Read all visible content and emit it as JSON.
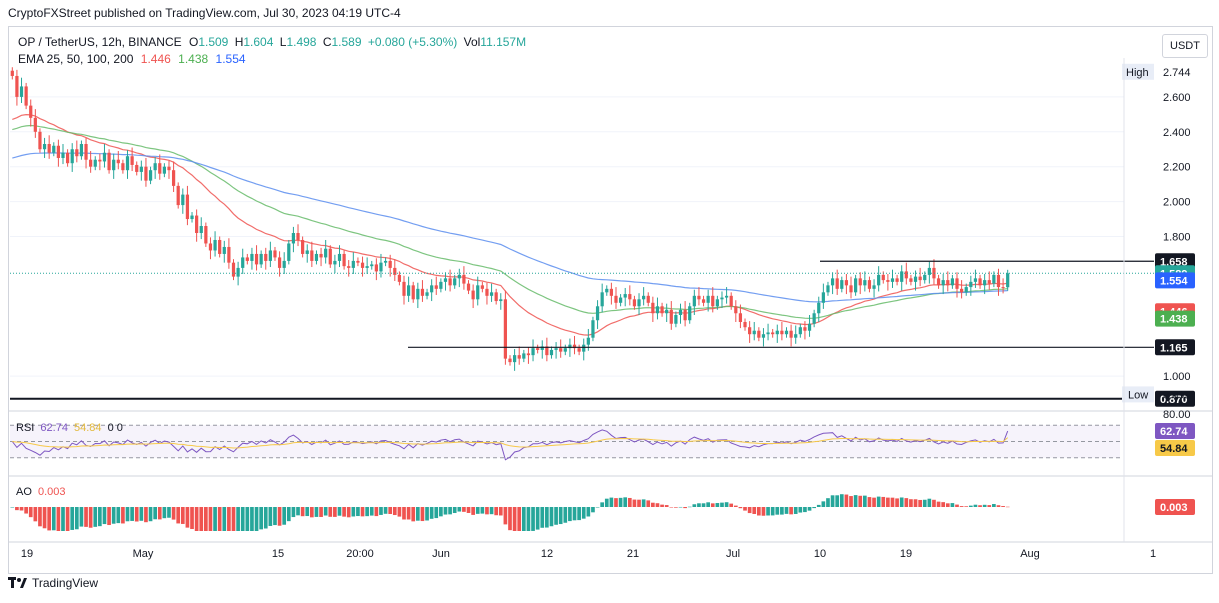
{
  "header": {
    "text": "CryptoFXStreet published on TradingView.com, Jul 30, 2023 04:19 UTC-4"
  },
  "legend": {
    "symbol": "OP / TetherUS, 12h, BINANCE",
    "o_label": "O",
    "o": "1.509",
    "h_label": "H",
    "h": "1.604",
    "l_label": "L",
    "l": "1.498",
    "c_label": "C",
    "c": "1.589",
    "change": "+0.080 (+5.30%)",
    "vol_label": "Vol",
    "vol": "11.157M",
    "ema_label": "EMA 25, 50, 100, 200",
    "ema25": "1.446",
    "ema50": "1.438",
    "ema100": "1.554"
  },
  "currency": "USDT",
  "colors": {
    "up": "#26a69a",
    "down": "#ef5350",
    "ema25": "#ef5350",
    "ema50": "#66bb6a",
    "ema100": "#5b8def",
    "rsi": "#7e57c2",
    "rsi_ma": "#f7c948",
    "hline": "#131722",
    "axis_text": "#131722",
    "grid": "#f0f3fa"
  },
  "chart_data": {
    "type": "candlestick",
    "ylim": [
      0.84,
      2.8
    ],
    "y_ticks": [
      "2.600",
      "2.400",
      "2.200",
      "2.000",
      "1.800",
      "1.000"
    ],
    "x_ticks": [
      "19",
      "May",
      "15",
      "20:00",
      "Jun",
      "12",
      "21",
      "Jul",
      "10",
      "19",
      "Aug",
      "1"
    ],
    "high_label": "High",
    "high": "2.744",
    "low_label": "Low",
    "low": "0.895",
    "horizontal_levels": [
      {
        "value": 1.658,
        "label": "1.658"
      },
      {
        "value": 1.165,
        "label": "1.165"
      },
      {
        "value": 0.87,
        "label": "0.870"
      }
    ],
    "price_tags": [
      {
        "value": 1.589,
        "label": "1.589",
        "color": "#26a69a"
      },
      {
        "value": 1.554,
        "label": "1.554",
        "color": "#2962ff"
      },
      {
        "value": 1.446,
        "label": "1.446",
        "color": "#ef5350"
      },
      {
        "value": 1.438,
        "label": "1.438",
        "color": "#4caf50"
      }
    ],
    "closes": [
      2.72,
      2.6,
      2.66,
      2.55,
      2.48,
      2.4,
      2.3,
      2.33,
      2.28,
      2.32,
      2.25,
      2.28,
      2.22,
      2.3,
      2.26,
      2.33,
      2.24,
      2.2,
      2.24,
      2.23,
      2.28,
      2.18,
      2.24,
      2.22,
      2.18,
      2.26,
      2.21,
      2.17,
      2.2,
      2.12,
      2.18,
      2.22,
      2.16,
      2.2,
      2.18,
      2.09,
      1.98,
      2.04,
      1.9,
      1.92,
      1.82,
      1.86,
      1.76,
      1.72,
      1.78,
      1.7,
      1.74,
      1.65,
      1.57,
      1.62,
      1.68,
      1.66,
      1.7,
      1.64,
      1.7,
      1.66,
      1.72,
      1.68,
      1.62,
      1.66,
      1.76,
      1.82,
      1.78,
      1.7,
      1.72,
      1.66,
      1.7,
      1.68,
      1.73,
      1.64,
      1.66,
      1.7,
      1.63,
      1.62,
      1.66,
      1.65,
      1.62,
      1.63,
      1.64,
      1.6,
      1.65,
      1.66,
      1.62,
      1.58,
      1.54,
      1.46,
      1.52,
      1.44,
      1.5,
      1.46,
      1.48,
      1.52,
      1.5,
      1.54,
      1.56,
      1.52,
      1.56,
      1.58,
      1.53,
      1.49,
      1.44,
      1.52,
      1.5,
      1.46,
      1.48,
      1.43,
      1.44,
      1.1,
      1.08,
      1.12,
      1.1,
      1.13,
      1.12,
      1.16,
      1.15,
      1.17,
      1.12,
      1.15,
      1.16,
      1.14,
      1.16,
      1.18,
      1.16,
      1.14,
      1.18,
      1.22,
      1.32,
      1.4,
      1.48,
      1.5,
      1.46,
      1.42,
      1.45,
      1.47,
      1.44,
      1.4,
      1.44,
      1.46,
      1.42,
      1.36,
      1.4,
      1.36,
      1.38,
      1.3,
      1.35,
      1.38,
      1.32,
      1.4,
      1.46,
      1.44,
      1.42,
      1.46,
      1.4,
      1.44,
      1.45,
      1.46,
      1.4,
      1.36,
      1.31,
      1.28,
      1.24,
      1.26,
      1.22,
      1.24,
      1.25,
      1.24,
      1.26,
      1.24,
      1.26,
      1.22,
      1.24,
      1.28,
      1.26,
      1.3,
      1.36,
      1.42,
      1.48,
      1.52,
      1.56,
      1.5,
      1.55,
      1.52,
      1.48,
      1.56,
      1.52,
      1.55,
      1.5,
      1.52,
      1.58,
      1.55,
      1.54,
      1.56,
      1.54,
      1.6,
      1.56,
      1.54,
      1.57,
      1.55,
      1.58,
      1.62,
      1.56,
      1.52,
      1.55,
      1.52,
      1.56,
      1.5,
      1.48,
      1.51,
      1.54,
      1.56,
      1.52,
      1.55,
      1.53,
      1.58,
      1.51,
      1.509,
      1.589
    ],
    "rsi": {
      "label": "RSI",
      "value": "62.74",
      "ma": "54.84",
      "extra": "0 0",
      "levels": [
        70,
        50,
        30
      ],
      "top_tick": "80.00",
      "ylim": [
        15,
        85
      ]
    },
    "ao": {
      "label": "AO",
      "value": "0.003"
    }
  }
}
